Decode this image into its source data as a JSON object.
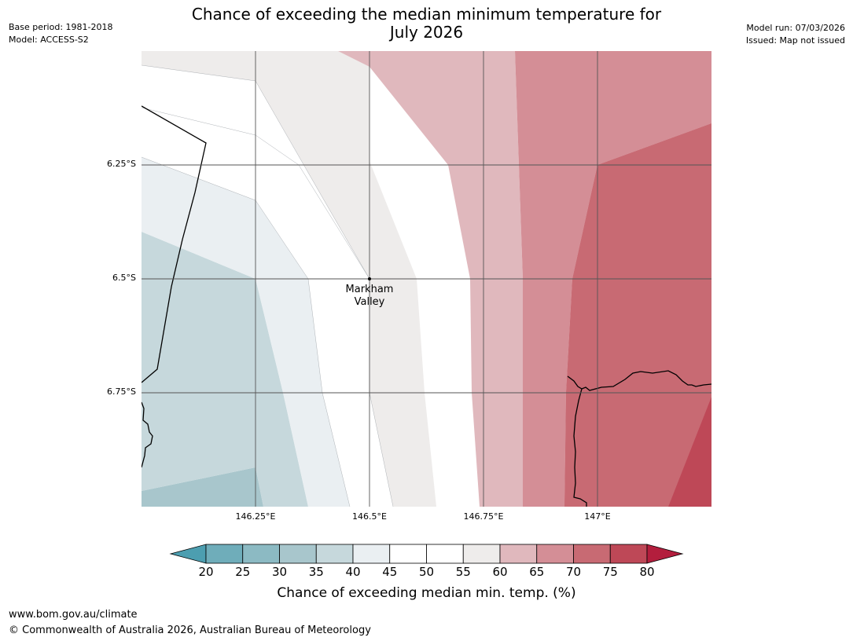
{
  "header": {
    "base_period": "Base period: 1981-2018",
    "model": "Model: ACCESS-S2",
    "model_run": "Model run: 07/03/2026",
    "issued": "Issued: Map not issued",
    "title_line1": "Chance of exceeding the median minimum temperature for",
    "title_line2": "July 2026"
  },
  "map": {
    "place": {
      "name_line1": "Markham",
      "name_line2": "Valley",
      "lat": -6.5,
      "lon": 146.5
    },
    "lat_labels": [
      "6.25°S",
      "6.5°S",
      "6.75°S"
    ],
    "lon_labels": [
      "146.25°E",
      "146.5°E",
      "146.75°E",
      "147°E"
    ]
  },
  "colorbar": {
    "ticks": [
      "20",
      "25",
      "30",
      "35",
      "40",
      "45",
      "50",
      "55",
      "60",
      "65",
      "70",
      "75",
      "80"
    ],
    "label": "Chance of exceeding median min. temp. (%)",
    "colors": [
      "#4c9eb0",
      "#6fadba",
      "#8cbac3",
      "#a8c6cc",
      "#c6d8dc",
      "#eaeff2",
      "#ffffff",
      "#ffffff",
      "#eeeceb",
      "#e0b8bd",
      "#d48e96",
      "#c86a73",
      "#be4857",
      "#b31e3d"
    ]
  },
  "footer": {
    "url": "www.bom.gov.au/climate",
    "copyright": "© Commonwealth of Australia 2026, Australian Bureau of Meteorology"
  }
}
